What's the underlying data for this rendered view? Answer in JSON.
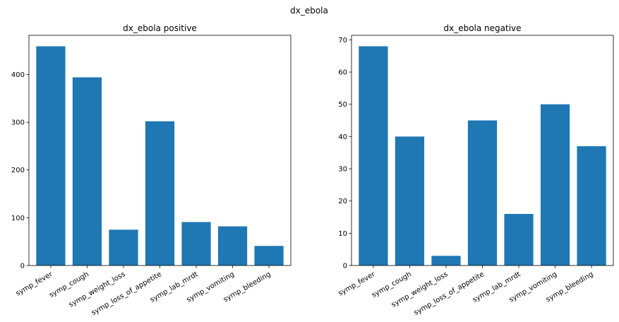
{
  "figure": {
    "suptitle": "dx_ebola"
  },
  "chart_data": [
    {
      "type": "bar",
      "title": "dx_ebola positive",
      "xlabel": "",
      "ylabel": "",
      "categories": [
        "symp_fever",
        "symp_cough",
        "symp_weight_loss",
        "symp_loss_of_appetite",
        "symp_lab_mrdt",
        "symp_vomiting",
        "symp_bleeding"
      ],
      "values": [
        459,
        394,
        75,
        302,
        91,
        82,
        41
      ],
      "ylim": [
        0,
        482
      ],
      "yticks": [
        0,
        100,
        200,
        300,
        400
      ],
      "bar_color": "#1f77b4",
      "grid": false,
      "legend": "none"
    },
    {
      "type": "bar",
      "title": "dx_ebola negative",
      "xlabel": "",
      "ylabel": "",
      "categories": [
        "symp_fever",
        "symp_cough",
        "symp_weight_loss",
        "symp_loss_of_appetite",
        "symp_lab_mrdt",
        "symp_vomiting",
        "symp_bleeding"
      ],
      "values": [
        68,
        40,
        3,
        45,
        16,
        50,
        37
      ],
      "ylim": [
        0,
        71.4
      ],
      "yticks": [
        0,
        10,
        20,
        30,
        40,
        50,
        60,
        70
      ],
      "bar_color": "#1f77b4",
      "grid": false,
      "legend": "none"
    }
  ]
}
